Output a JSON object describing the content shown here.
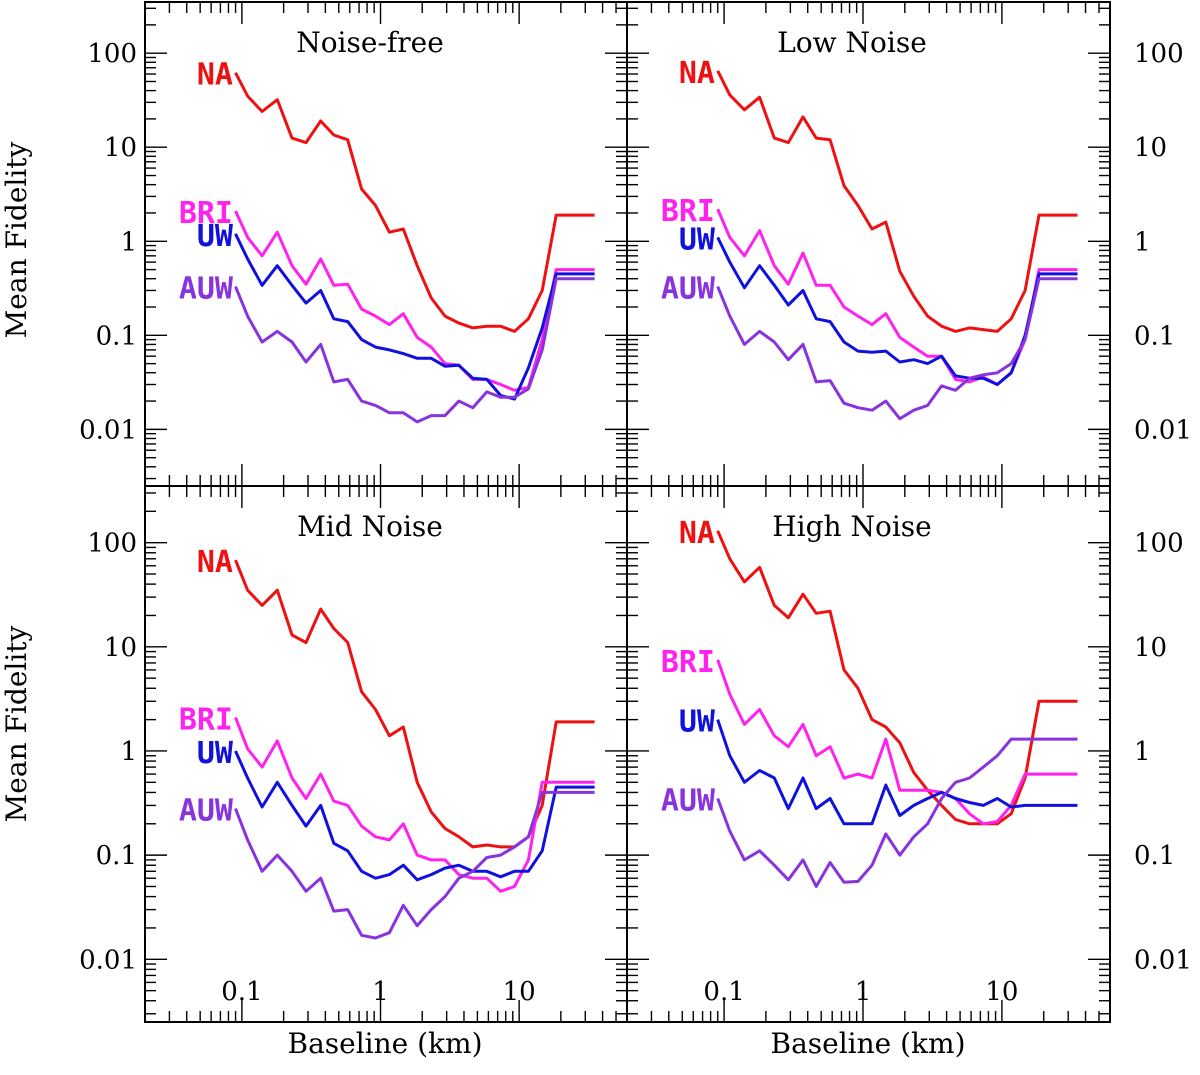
{
  "chart_data": {
    "type": "line",
    "layout": "2x2 panels, shared log axes",
    "xlabel": "Baseline (km)",
    "ylabel": "Mean Fidelity",
    "xscale": "log",
    "yscale": "log",
    "xlim": [
      0.02,
      60
    ],
    "ylim": [
      0.0025,
      350
    ],
    "xticks": [
      0.1,
      1,
      10
    ],
    "xtick_labels": [
      "0.1",
      "1",
      "10"
    ],
    "yticks": [
      0.01,
      0.1,
      1,
      10,
      100
    ],
    "ytick_labels": [
      "0.01",
      "0.1",
      "1",
      "10",
      "100"
    ],
    "colors": {
      "NA": "#ee1111",
      "BRI": "#ff22ee",
      "UW": "#1111dd",
      "AUW": "#8833dd"
    },
    "x": [
      0.09,
      0.11,
      0.14,
      0.18,
      0.23,
      0.29,
      0.37,
      0.46,
      0.58,
      0.73,
      0.92,
      1.16,
      1.46,
      1.84,
      2.32,
      2.92,
      3.68,
      4.63,
      5.84,
      7.35,
      9.26,
      11.66,
      14.68,
      18.5,
      23.3,
      29.3,
      35.0
    ],
    "panels": [
      {
        "title": "Noise-free",
        "series": [
          {
            "name": "NA",
            "values": [
              62,
              35,
              24,
              32,
              12.5,
              11.2,
              19,
              13.5,
              12,
              3.6,
              2.4,
              1.25,
              1.35,
              0.55,
              0.25,
              0.16,
              0.135,
              0.12,
              0.125,
              0.125,
              0.11,
              0.15,
              0.3,
              1.9,
              1.9,
              1.9,
              1.9
            ]
          },
          {
            "name": "BRI",
            "values": [
              2.1,
              1.1,
              0.7,
              1.25,
              0.55,
              0.35,
              0.65,
              0.34,
              0.35,
              0.19,
              0.16,
              0.13,
              0.17,
              0.095,
              0.075,
              0.05,
              0.048,
              0.034,
              0.034,
              0.03,
              0.026,
              0.028,
              0.09,
              0.5,
              0.5,
              0.5,
              0.5
            ]
          },
          {
            "name": "UW",
            "values": [
              1.2,
              0.65,
              0.34,
              0.55,
              0.34,
              0.22,
              0.3,
              0.15,
              0.14,
              0.09,
              0.075,
              0.07,
              0.064,
              0.057,
              0.057,
              0.047,
              0.048,
              0.035,
              0.034,
              0.023,
              0.021,
              0.045,
              0.12,
              0.45,
              0.45,
              0.45,
              0.45
            ]
          },
          {
            "name": "AUW",
            "values": [
              0.33,
              0.16,
              0.085,
              0.11,
              0.085,
              0.052,
              0.08,
              0.032,
              0.034,
              0.02,
              0.018,
              0.015,
              0.015,
              0.012,
              0.014,
              0.014,
              0.02,
              0.017,
              0.025,
              0.022,
              0.022,
              0.027,
              0.07,
              0.4,
              0.4,
              0.4,
              0.4
            ]
          }
        ]
      },
      {
        "title": "Low Noise",
        "series": [
          {
            "name": "NA",
            "values": [
              65,
              36,
              25,
              34,
              12.5,
              11.2,
              21,
              12.5,
              12,
              3.9,
              2.4,
              1.35,
              1.6,
              0.48,
              0.26,
              0.16,
              0.125,
              0.11,
              0.12,
              0.115,
              0.11,
              0.15,
              0.3,
              1.9,
              1.9,
              1.9,
              1.9
            ]
          },
          {
            "name": "BRI",
            "values": [
              2.2,
              1.1,
              0.7,
              1.3,
              0.55,
              0.35,
              0.75,
              0.34,
              0.34,
              0.2,
              0.16,
              0.13,
              0.17,
              0.095,
              0.075,
              0.06,
              0.06,
              0.034,
              0.032,
              0.036,
              0.03,
              0.04,
              0.09,
              0.5,
              0.5,
              0.5,
              0.5
            ]
          },
          {
            "name": "UW",
            "values": [
              1.1,
              0.6,
              0.32,
              0.55,
              0.34,
              0.21,
              0.3,
              0.15,
              0.14,
              0.085,
              0.068,
              0.066,
              0.068,
              0.052,
              0.055,
              0.05,
              0.06,
              0.037,
              0.035,
              0.035,
              0.03,
              0.04,
              0.1,
              0.45,
              0.45,
              0.45,
              0.45
            ]
          },
          {
            "name": "AUW",
            "values": [
              0.33,
              0.16,
              0.08,
              0.11,
              0.085,
              0.055,
              0.08,
              0.032,
              0.033,
              0.019,
              0.017,
              0.016,
              0.02,
              0.013,
              0.016,
              0.018,
              0.029,
              0.026,
              0.035,
              0.038,
              0.04,
              0.05,
              0.09,
              0.4,
              0.4,
              0.4,
              0.4
            ]
          }
        ]
      },
      {
        "title": "Mid Noise",
        "series": [
          {
            "name": "NA",
            "values": [
              68,
              35,
              25,
              35,
              13,
              11,
              23,
              15,
              11,
              3.7,
              2.5,
              1.4,
              1.7,
              0.5,
              0.26,
              0.18,
              0.15,
              0.12,
              0.125,
              0.12,
              0.12,
              0.15,
              0.3,
              1.9,
              1.9,
              1.9,
              1.9
            ]
          },
          {
            "name": "BRI",
            "values": [
              2.1,
              1.05,
              0.7,
              1.25,
              0.55,
              0.35,
              0.6,
              0.33,
              0.3,
              0.19,
              0.15,
              0.14,
              0.2,
              0.1,
              0.09,
              0.09,
              0.065,
              0.06,
              0.06,
              0.045,
              0.05,
              0.09,
              0.5,
              0.5,
              0.5,
              0.5,
              0.5
            ]
          },
          {
            "name": "UW",
            "values": [
              1.0,
              0.55,
              0.29,
              0.5,
              0.3,
              0.19,
              0.3,
              0.13,
              0.11,
              0.07,
              0.06,
              0.065,
              0.08,
              0.058,
              0.065,
              0.075,
              0.08,
              0.07,
              0.07,
              0.062,
              0.07,
              0.07,
              0.11,
              0.45,
              0.45,
              0.45,
              0.45
            ]
          },
          {
            "name": "AUW",
            "values": [
              0.28,
              0.14,
              0.07,
              0.1,
              0.07,
              0.045,
              0.06,
              0.029,
              0.03,
              0.017,
              0.016,
              0.018,
              0.033,
              0.021,
              0.03,
              0.04,
              0.06,
              0.07,
              0.095,
              0.1,
              0.12,
              0.15,
              0.4,
              0.4,
              0.4,
              0.4,
              0.4
            ]
          }
        ]
      },
      {
        "title": "High Noise",
        "series": [
          {
            "name": "NA",
            "values": [
              130,
              70,
              42,
              58,
              25,
              19,
              32,
              21,
              22,
              6,
              4,
              2,
              1.7,
              1.2,
              0.62,
              0.42,
              0.3,
              0.22,
              0.2,
              0.2,
              0.2,
              0.25,
              0.55,
              3.0,
              3.0,
              3.0,
              3.0
            ]
          },
          {
            "name": "BRI",
            "values": [
              7.5,
              3.5,
              1.8,
              2.5,
              1.4,
              1.1,
              1.8,
              0.9,
              1.1,
              0.55,
              0.6,
              0.55,
              1.3,
              0.42,
              0.42,
              0.42,
              0.4,
              0.35,
              0.25,
              0.2,
              0.21,
              0.3,
              0.6,
              0.6,
              0.6,
              0.6,
              0.6
            ]
          },
          {
            "name": "UW",
            "values": [
              2.0,
              0.9,
              0.5,
              0.65,
              0.55,
              0.28,
              0.55,
              0.28,
              0.35,
              0.2,
              0.2,
              0.2,
              0.47,
              0.24,
              0.3,
              0.35,
              0.4,
              0.35,
              0.32,
              0.3,
              0.35,
              0.29,
              0.3,
              0.3,
              0.3,
              0.3,
              0.3
            ]
          },
          {
            "name": "AUW",
            "values": [
              0.35,
              0.17,
              0.09,
              0.11,
              0.08,
              0.058,
              0.09,
              0.05,
              0.085,
              0.055,
              0.056,
              0.08,
              0.16,
              0.1,
              0.15,
              0.2,
              0.35,
              0.5,
              0.55,
              0.7,
              0.9,
              1.3,
              1.3,
              1.3,
              1.3,
              1.3,
              1.3
            ]
          }
        ]
      }
    ]
  }
}
